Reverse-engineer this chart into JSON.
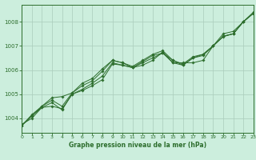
{
  "title": "Graphe pression niveau de la mer (hPa)",
  "background_color": "#cceedd",
  "grid_color": "#aaccbb",
  "line_color": "#2d6e2d",
  "xlim": [
    0,
    23
  ],
  "ylim": [
    1003.4,
    1008.7
  ],
  "xticks": [
    0,
    1,
    2,
    3,
    4,
    5,
    6,
    7,
    8,
    9,
    10,
    11,
    12,
    13,
    14,
    15,
    16,
    17,
    18,
    19,
    20,
    21,
    22,
    23
  ],
  "yticks": [
    1004,
    1005,
    1006,
    1007,
    1008
  ],
  "series": [
    [
      1003.75,
      1004.0,
      1004.45,
      1004.5,
      1004.4,
      1005.0,
      1005.15,
      1005.35,
      1005.6,
      1006.25,
      1006.2,
      1006.1,
      1006.2,
      1006.4,
      1006.75,
      1006.3,
      1006.3,
      1006.3,
      1006.4,
      1007.0,
      1007.5,
      1007.6,
      1008.0,
      1008.35
    ],
    [
      1003.7,
      1004.1,
      1004.45,
      1004.65,
      1004.35,
      1005.0,
      1005.2,
      1005.45,
      1005.75,
      1006.3,
      1006.2,
      1006.1,
      1006.3,
      1006.5,
      1006.7,
      1006.3,
      1006.2,
      1006.5,
      1006.6,
      1007.0,
      1007.4,
      1007.5,
      1008.0,
      1008.4
    ],
    [
      1003.7,
      1004.1,
      1004.5,
      1004.75,
      1004.5,
      1005.05,
      1005.35,
      1005.55,
      1005.95,
      1006.4,
      1006.3,
      1006.1,
      1006.35,
      1006.6,
      1006.7,
      1006.4,
      1006.2,
      1006.5,
      1006.65,
      1007.0,
      1007.4,
      1007.5,
      1008.0,
      1008.35
    ],
    [
      1003.7,
      1004.15,
      1004.5,
      1004.85,
      1004.9,
      1005.05,
      1005.45,
      1005.65,
      1006.05,
      1006.4,
      1006.3,
      1006.15,
      1006.4,
      1006.65,
      1006.8,
      1006.4,
      1006.25,
      1006.55,
      1006.65,
      1007.0,
      1007.38,
      1007.5,
      1008.0,
      1008.35
    ]
  ]
}
